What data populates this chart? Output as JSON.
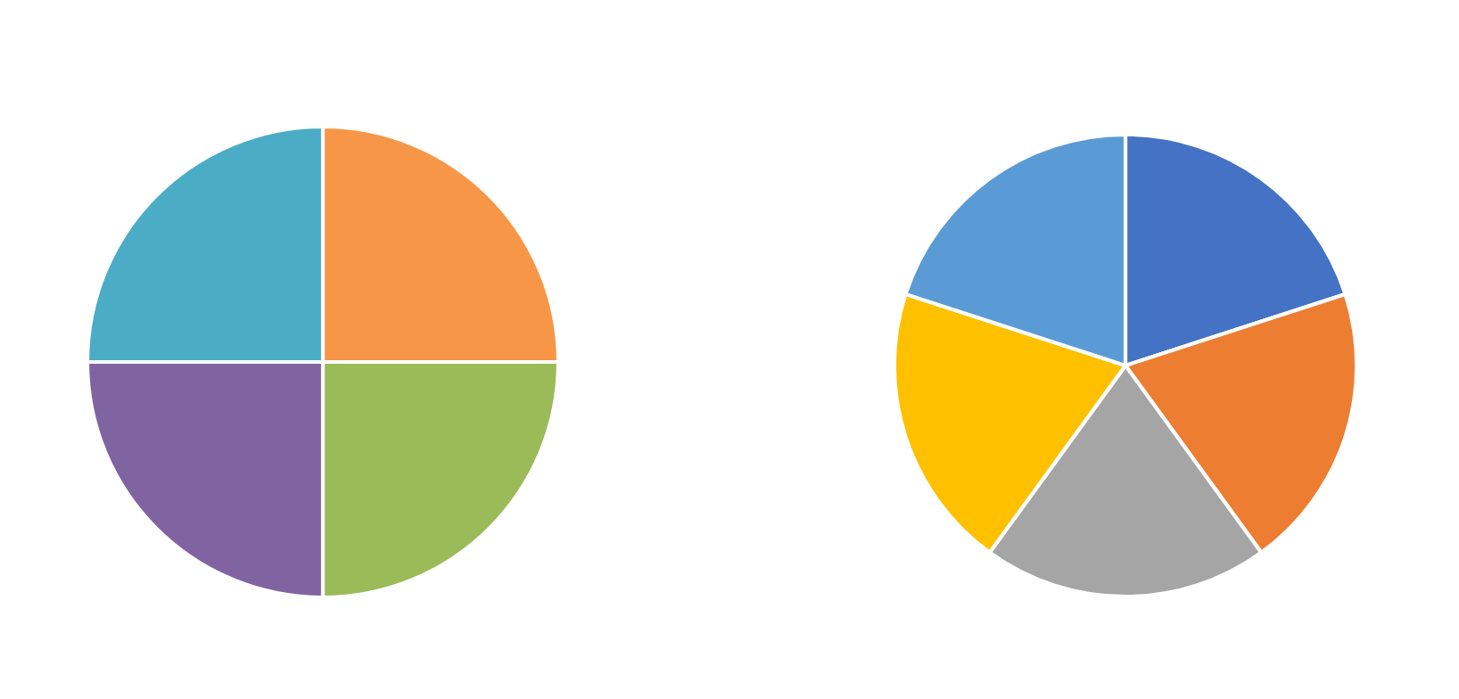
{
  "chart_data": [
    {
      "type": "pie",
      "categories": [
        null,
        null,
        null,
        null
      ],
      "values": [
        25,
        25,
        25,
        25
      ],
      "colors": [
        "#f79646",
        "#9bbb59",
        "#8064a2",
        "#4bacc6"
      ]
    },
    {
      "type": "pie",
      "categories": [
        null,
        null,
        null,
        null,
        null
      ],
      "values": [
        20,
        20,
        20,
        20,
        20
      ],
      "colors": [
        "#4472c4",
        "#ed7d31",
        "#a5a5a5",
        "#ffc000",
        "#5b9bd5"
      ]
    }
  ]
}
